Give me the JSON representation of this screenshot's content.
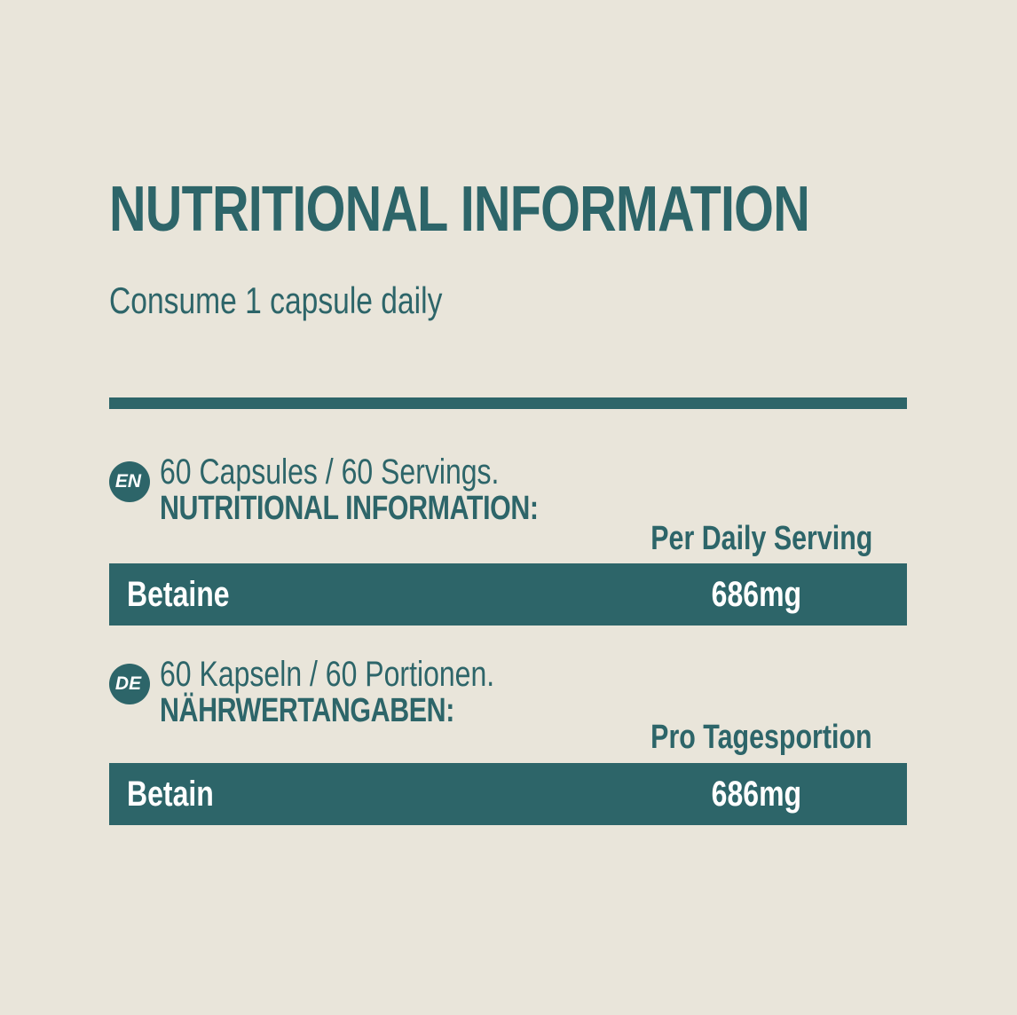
{
  "colors": {
    "background": "#e9e5da",
    "teal": "#2d6569",
    "row_text": "#ffffff"
  },
  "header": {
    "title": "NUTRITIONAL INFORMATION",
    "subtitle": "Consume 1 capsule daily"
  },
  "sections": [
    {
      "lang_badge": "EN",
      "line1": "60 Capsules / 60 Servings.",
      "line2": "NUTRITIONAL INFORMATION:",
      "column_header": "Per Daily Serving",
      "row": {
        "name": "Betaine",
        "value": "686mg"
      }
    },
    {
      "lang_badge": "DE",
      "line1": "60 Kapseln / 60 Portionen.",
      "line2": "NÄHRWERTANGABEN:",
      "column_header": "Pro Tagesportion",
      "row": {
        "name": "Betain",
        "value": "686mg"
      }
    }
  ]
}
